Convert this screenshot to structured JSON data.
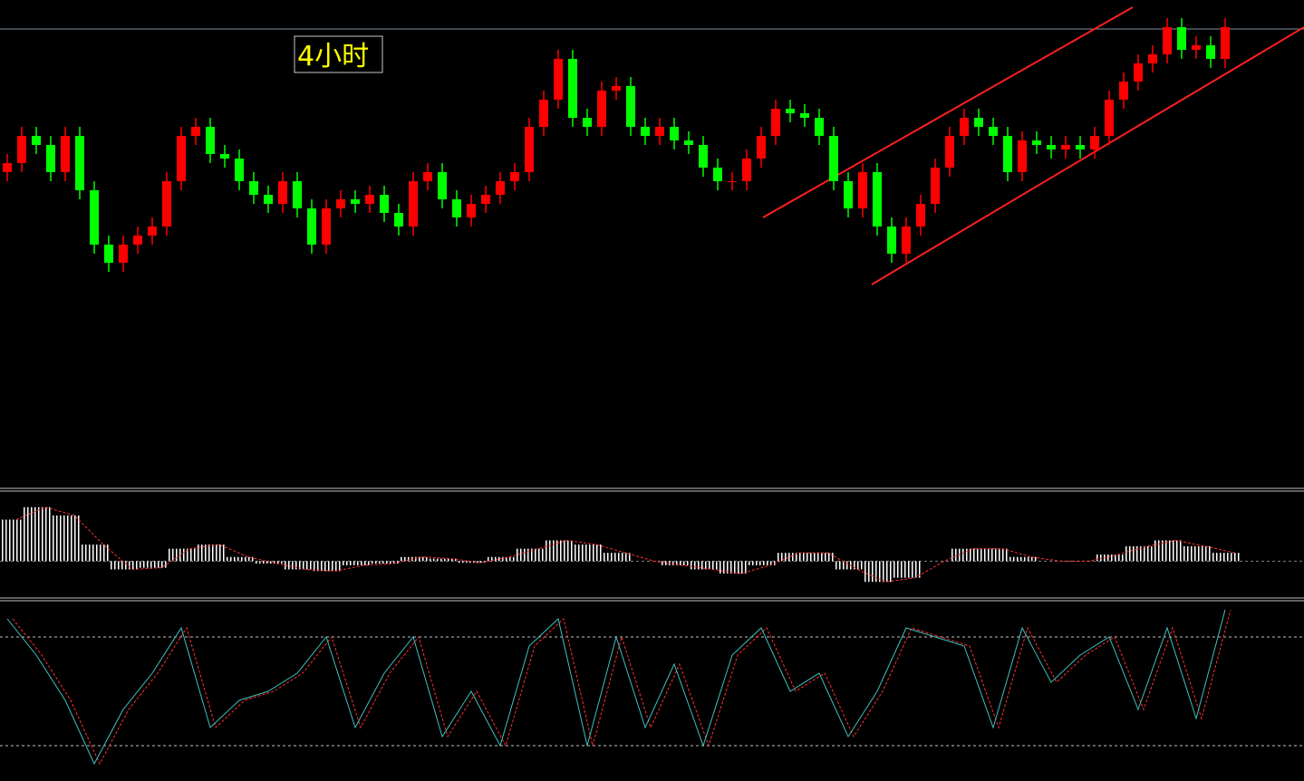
{
  "chart_data": [
    {
      "type": "candlestick",
      "label": "4小时",
      "up_color": "#ff0000",
      "down_color": "#00ff00",
      "ylim": [
        0,
        540
      ],
      "open": [
        350,
        360,
        390,
        380,
        350,
        390,
        330,
        270,
        250,
        270,
        280,
        290,
        340,
        390,
        400,
        370,
        365,
        340,
        325,
        315,
        340,
        310,
        270,
        310,
        320,
        315,
        325,
        305,
        290,
        340,
        350,
        320,
        300,
        315,
        325,
        340,
        350,
        400,
        430,
        475,
        410,
        400,
        440,
        445,
        400,
        390,
        400,
        385,
        380,
        355,
        340,
        340,
        365,
        390,
        420,
        415,
        410,
        390,
        340,
        310,
        350,
        290,
        260,
        290,
        315,
        355,
        390,
        410,
        400,
        390,
        350,
        385,
        380,
        375,
        380,
        375,
        390,
        430,
        450,
        470,
        480,
        510,
        485,
        490,
        475
      ],
      "high": [
        370,
        400,
        400,
        390,
        400,
        400,
        340,
        280,
        280,
        290,
        300,
        350,
        400,
        410,
        410,
        380,
        375,
        350,
        335,
        350,
        350,
        320,
        320,
        330,
        330,
        335,
        335,
        315,
        350,
        360,
        360,
        330,
        325,
        335,
        350,
        360,
        410,
        440,
        485,
        485,
        420,
        450,
        455,
        455,
        410,
        410,
        410,
        395,
        390,
        365,
        350,
        375,
        400,
        430,
        430,
        425,
        420,
        400,
        350,
        360,
        360,
        300,
        300,
        325,
        365,
        400,
        420,
        420,
        410,
        400,
        395,
        395,
        390,
        390,
        390,
        400,
        440,
        460,
        480,
        490,
        520,
        520,
        500,
        500,
        520
      ],
      "low": [
        340,
        350,
        370,
        340,
        340,
        320,
        260,
        240,
        240,
        260,
        270,
        280,
        330,
        380,
        360,
        355,
        330,
        315,
        305,
        305,
        300,
        260,
        260,
        300,
        305,
        305,
        295,
        280,
        280,
        330,
        310,
        290,
        290,
        305,
        315,
        330,
        340,
        390,
        420,
        400,
        390,
        390,
        430,
        390,
        380,
        380,
        375,
        370,
        345,
        330,
        330,
        330,
        355,
        380,
        405,
        400,
        380,
        330,
        300,
        300,
        280,
        250,
        250,
        280,
        305,
        345,
        380,
        390,
        380,
        340,
        340,
        370,
        365,
        365,
        365,
        365,
        380,
        420,
        440,
        460,
        470,
        475,
        475,
        465,
        465
      ],
      "close": [
        360,
        390,
        380,
        350,
        390,
        330,
        270,
        250,
        270,
        280,
        290,
        340,
        390,
        400,
        370,
        365,
        340,
        325,
        315,
        340,
        310,
        270,
        310,
        320,
        315,
        325,
        305,
        290,
        340,
        350,
        320,
        300,
        315,
        325,
        340,
        350,
        400,
        430,
        475,
        410,
        400,
        440,
        445,
        400,
        390,
        400,
        385,
        380,
        355,
        340,
        340,
        365,
        390,
        420,
        415,
        410,
        390,
        340,
        310,
        350,
        290,
        260,
        290,
        315,
        355,
        390,
        410,
        400,
        390,
        350,
        385,
        380,
        375,
        380,
        375,
        390,
        430,
        450,
        470,
        480,
        510,
        485,
        490,
        475,
        510
      ]
    },
    {
      "type": "histogram",
      "color": "#ffffff",
      "signal_color": "#ff3030",
      "ylim": [
        -40,
        80
      ],
      "values": [
        50,
        65,
        55,
        20,
        -10,
        -8,
        15,
        20,
        5,
        -3,
        -10,
        -12,
        -5,
        -3,
        5,
        3,
        -2,
        5,
        15,
        25,
        20,
        10,
        0,
        -5,
        -10,
        -15,
        -5,
        10,
        10,
        -10,
        -25,
        -20,
        0,
        15,
        15,
        5,
        0,
        0,
        8,
        18,
        25,
        18,
        10
      ]
    },
    {
      "type": "line",
      "color": "#40c0c0",
      "ylim": [
        0,
        100
      ],
      "levels": [
        20,
        80
      ],
      "values": [
        90,
        70,
        45,
        10,
        40,
        60,
        85,
        30,
        45,
        50,
        60,
        80,
        30,
        60,
        80,
        25,
        50,
        20,
        75,
        90,
        20,
        80,
        30,
        65,
        20,
        70,
        85,
        50,
        60,
        25,
        50,
        85,
        80,
        75,
        30,
        85,
        55,
        70,
        80,
        40,
        85,
        35,
        95
      ]
    }
  ]
}
